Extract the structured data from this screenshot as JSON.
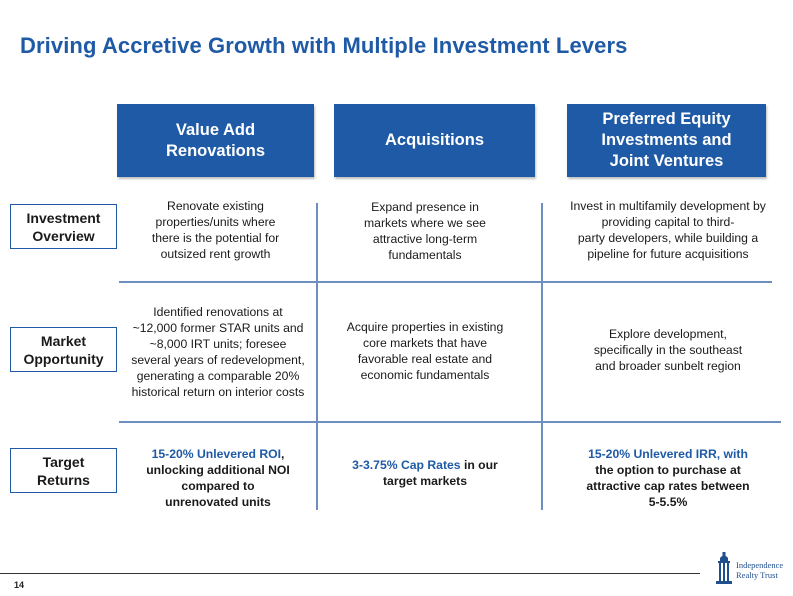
{
  "title": "Driving Accretive Growth with Multiple Investment Levers",
  "columns": [
    {
      "label": "Value Add\nRenovations"
    },
    {
      "label": "Acquisitions"
    },
    {
      "label": "Preferred Equity\nInvestments and\nJoint Ventures"
    }
  ],
  "rows": [
    {
      "label": "Investment\nOverview",
      "cells": [
        {
          "lines": [
            "Renovate existing",
            "properties/units where",
            "there is the potential for",
            "outsized rent growth"
          ]
        },
        {
          "lines": [
            "Expand presence in",
            "markets where we see",
            "attractive long-term",
            "fundamentals"
          ]
        },
        {
          "lines": [
            "Invest in multifamily development by",
            "providing capital to third-",
            "party developers, while building a",
            "pipeline for future acquisitions"
          ]
        }
      ]
    },
    {
      "label": "Market\nOpportunity",
      "cells": [
        {
          "lines": [
            "Identified renovations at",
            "~12,000 former STAR units and",
            "~8,000 IRT units; foresee",
            "several years of redevelopment,",
            "generating a comparable 20%",
            "historical return on interior costs"
          ]
        },
        {
          "lines": [
            "Acquire properties in existing",
            "core markets that have",
            "favorable real estate and",
            "economic fundamentals"
          ]
        },
        {
          "lines": [
            "Explore development,",
            "specifically in the southeast",
            "and broader sunbelt region"
          ]
        }
      ]
    },
    {
      "label": "Target\nReturns",
      "cells": [
        {
          "highlight": "15-20% Unlevered ROI",
          "line1_rest": ",",
          "lines": [
            "unlocking additional NOI",
            "compared to",
            "unrenovated units"
          ]
        },
        {
          "highlight": "3-3.75% Cap Rates",
          "line1_rest": " in our",
          "lines": [
            "target markets"
          ]
        },
        {
          "highlight": "15-20% Unlevered IRR",
          "line1_rest": ", with",
          "lines": [
            "the option to purchase at",
            "attractive cap rates between",
            "5-5.5%"
          ]
        }
      ]
    }
  ],
  "footer": {
    "page_number": "14",
    "logo_text": "Independence\nRealty Trust"
  },
  "colors": {
    "brand_blue": "#1f5aa6",
    "grid_line": "#6d8fc0"
  }
}
